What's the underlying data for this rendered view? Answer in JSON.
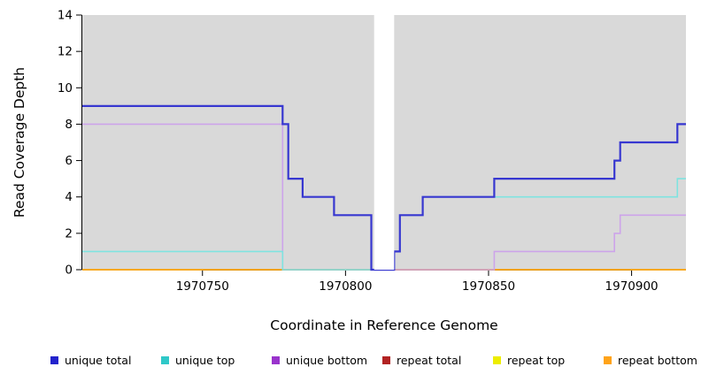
{
  "figure": {
    "background": "#ffffff",
    "text_color": "#000000"
  },
  "chart_data": {
    "type": "line",
    "subtype": "step",
    "title": "",
    "xlabel": "Coordinate in Reference Genome",
    "ylabel": "Read Coverage Depth",
    "xlim": [
      1970708,
      1970919
    ],
    "ylim": [
      0,
      14
    ],
    "xticks": [
      1970750,
      1970800,
      1970850,
      1970900
    ],
    "yticks": [
      0,
      2,
      4,
      6,
      8,
      10,
      12,
      14
    ],
    "grid": false,
    "plot_background": "#d9d9d9",
    "gap_band": {
      "x0": 1970810,
      "x1": 1970817,
      "color": "#ffffff"
    },
    "series": [
      {
        "name": "repeat total",
        "line_color": "#b22222",
        "line_width": 1.6,
        "points": [
          [
            1970708,
            0
          ],
          [
            1970919,
            0
          ]
        ]
      },
      {
        "name": "repeat top",
        "line_color": "#eded00",
        "line_width": 1.6,
        "points": [
          [
            1970708,
            0
          ],
          [
            1970919,
            0
          ]
        ]
      },
      {
        "name": "repeat bottom",
        "line_color": "#ffa319",
        "line_width": 1.6,
        "points": [
          [
            1970708,
            0
          ],
          [
            1970919,
            0
          ]
        ]
      },
      {
        "name": "unique bottom",
        "line_color": "#cda4ea",
        "line_width": 1.6,
        "points": [
          [
            1970708,
            8
          ],
          [
            1970778,
            8
          ],
          [
            1970778,
            0
          ],
          [
            1970852,
            0
          ],
          [
            1970852,
            1
          ],
          [
            1970894,
            1
          ],
          [
            1970894,
            2
          ],
          [
            1970896,
            2
          ],
          [
            1970896,
            3
          ],
          [
            1970919,
            3
          ]
        ]
      },
      {
        "name": "unique top",
        "line_color": "#7fe3e0",
        "line_width": 1.6,
        "points": [
          [
            1970708,
            1
          ],
          [
            1970778,
            1
          ],
          [
            1970778,
            0
          ],
          [
            1970817,
            0
          ],
          [
            1970817,
            1
          ],
          [
            1970819,
            1
          ],
          [
            1970819,
            3
          ],
          [
            1970827,
            3
          ],
          [
            1970827,
            4
          ],
          [
            1970916,
            4
          ],
          [
            1970916,
            5
          ],
          [
            1970919,
            5
          ]
        ]
      },
      {
        "name": "unique total",
        "line_color": "#3737d0",
        "line_width": 2.2,
        "points": [
          [
            1970708,
            9
          ],
          [
            1970778,
            9
          ],
          [
            1970778,
            8
          ],
          [
            1970780,
            8
          ],
          [
            1970780,
            5
          ],
          [
            1970785,
            5
          ],
          [
            1970785,
            4
          ],
          [
            1970796,
            4
          ],
          [
            1970796,
            3
          ],
          [
            1970809,
            3
          ],
          [
            1970809,
            0
          ],
          [
            1970817,
            0
          ],
          [
            1970817,
            1
          ],
          [
            1970819,
            1
          ],
          [
            1970819,
            3
          ],
          [
            1970827,
            3
          ],
          [
            1970827,
            4
          ],
          [
            1970852,
            4
          ],
          [
            1970852,
            5
          ],
          [
            1970894,
            5
          ],
          [
            1970894,
            6
          ],
          [
            1970896,
            6
          ],
          [
            1970896,
            7
          ],
          [
            1970916,
            7
          ],
          [
            1970916,
            8
          ],
          [
            1970919,
            8
          ]
        ]
      }
    ],
    "legend": {
      "position": "bottom",
      "items": [
        {
          "label": "unique total",
          "color": "#2222cc"
        },
        {
          "label": "unique top",
          "color": "#2fc8c8"
        },
        {
          "label": "unique bottom",
          "color": "#9933cc"
        },
        {
          "label": "repeat total",
          "color": "#b22222"
        },
        {
          "label": "repeat top",
          "color": "#eded00"
        },
        {
          "label": "repeat bottom",
          "color": "#ffa319"
        }
      ]
    }
  }
}
